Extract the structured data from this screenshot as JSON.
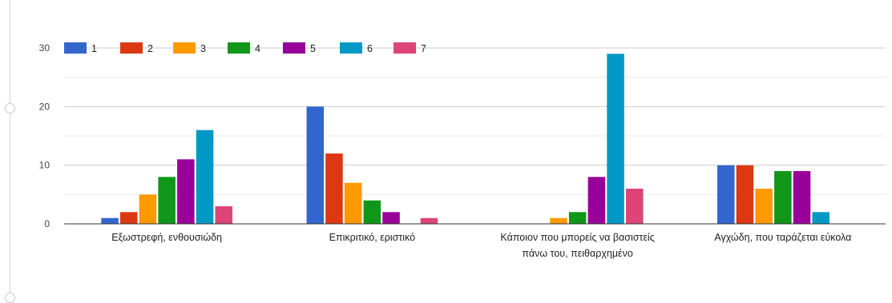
{
  "chart_data": {
    "type": "bar",
    "categories": [
      [
        "Εξωστρεφή, ενθουσιώδη"
      ],
      [
        "Επικριτικό, εριστικό"
      ],
      [
        "Κάποιον που μπορείς να βασιστείς",
        "πάνω του, πειθαρχημένο"
      ],
      [
        "Αγχώδη, που ταράζεται εύκολα"
      ]
    ],
    "series": [
      {
        "name": "1",
        "color": "#3366cc",
        "values": [
          1,
          20,
          0,
          10
        ]
      },
      {
        "name": "2",
        "color": "#dc3912",
        "values": [
          2,
          12,
          0,
          10
        ]
      },
      {
        "name": "3",
        "color": "#ff9900",
        "values": [
          5,
          7,
          1,
          6
        ]
      },
      {
        "name": "4",
        "color": "#109618",
        "values": [
          8,
          4,
          2,
          9
        ]
      },
      {
        "name": "5",
        "color": "#990099",
        "values": [
          11,
          2,
          8,
          9
        ]
      },
      {
        "name": "6",
        "color": "#0099c6",
        "values": [
          16,
          0,
          29,
          2
        ]
      },
      {
        "name": "7",
        "color": "#dd4477",
        "values": [
          3,
          1,
          6,
          0
        ]
      }
    ],
    "y_ticks": [
      0,
      10,
      20,
      30
    ],
    "ylim": [
      0,
      30
    ],
    "grid": true,
    "legend_position": "top-left",
    "title": "",
    "xlabel": "",
    "ylabel": ""
  }
}
